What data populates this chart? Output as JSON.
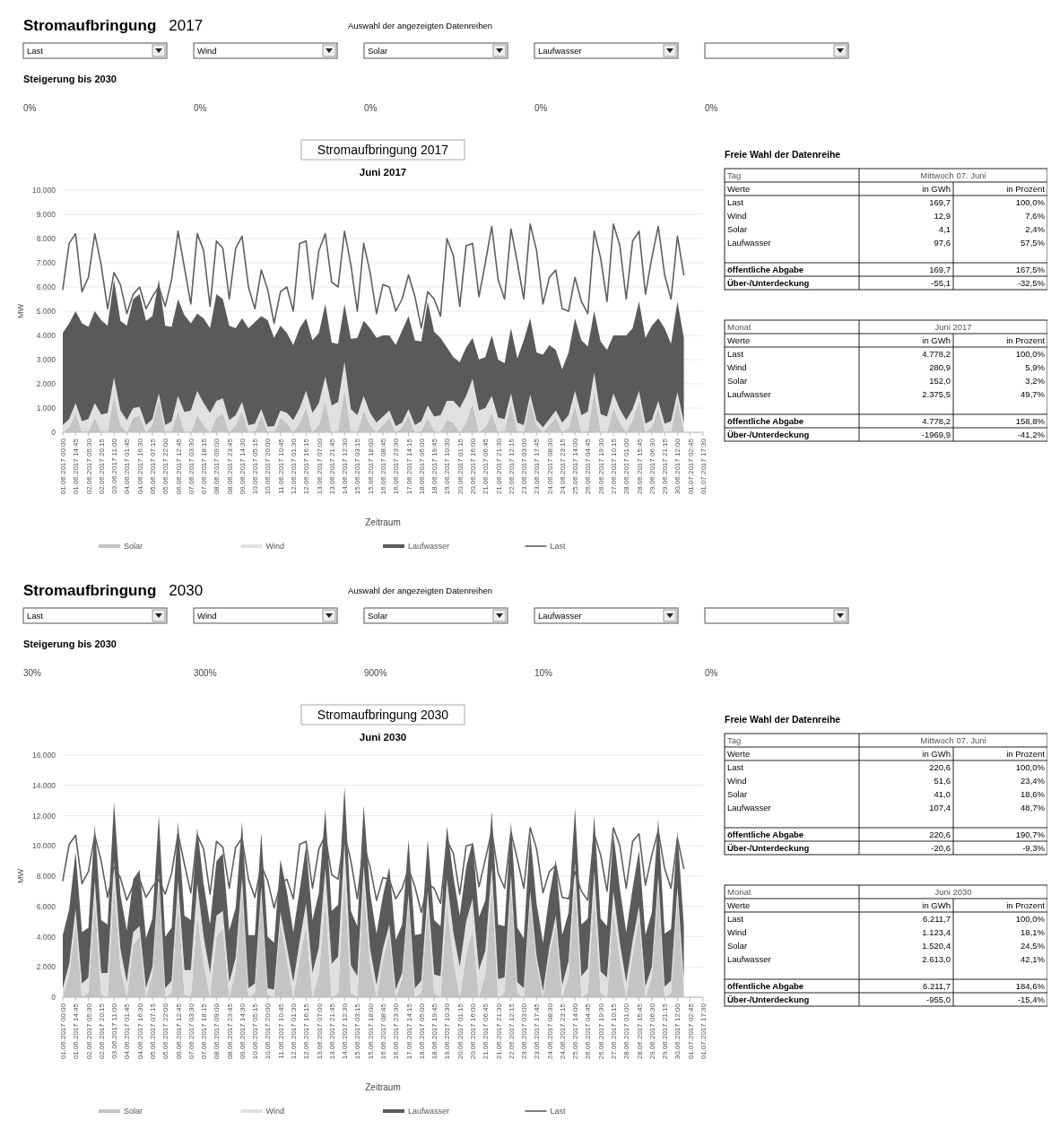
{
  "chart_data": [
    {
      "type": "other",
      "title": "Stromaufbringung",
      "subtitle": "2017",
      "categories": [
        "Last",
        "Wind",
        "Solar",
        "Laufwasser",
        null
      ],
      "annotations": [
        "Auswahl der angezeigten Datenreihen",
        "Steigerung bis 2030",
        "0%",
        "0%",
        "0%",
        "0%",
        "0%"
      ]
    },
    {
      "type": "area",
      "title": "Stromaufbringung 2017",
      "subtitle": "Juni 2017",
      "xlabel": "Zeitraum",
      "ylabel": "MW",
      "grid": "y",
      "legend": "bottom",
      "stacked": true,
      "ylim": [
        0,
        10000
      ],
      "yticks": [
        0,
        {
          "value": 1000,
          "label": "1.000"
        },
        {
          "value": 2000,
          "label": "2.000"
        },
        {
          "value": 3000,
          "label": "3.000"
        },
        {
          "value": 4000,
          "label": "4.000"
        },
        {
          "value": 5000,
          "label": "5.000"
        },
        {
          "value": 6000,
          "label": "6.000"
        },
        {
          "value": 7000,
          "label": "7.000"
        },
        {
          "value": 8000,
          "label": "8.000"
        },
        {
          "value": 9000,
          "label": "9.000"
        },
        {
          "value": 10000,
          "label": "10.000"
        }
      ],
      "categories": [
        "01.06.2017 00:00",
        null,
        "01.06.2017 14:45",
        null,
        "02.06.2017 05:30",
        null,
        "02.06.2017 20:15",
        null,
        "03.06.2017 11:00",
        null,
        "04.06.2017 01:45",
        null,
        "04.06.2017 16:30",
        null,
        "05.06.2017 07:15",
        null,
        "05.06.2017 22:00",
        null,
        "06.06.2017 12:45",
        null,
        "07.06.2017 03:30",
        null,
        "07.06.2017 18:15",
        null,
        "08.06.2017 09:00",
        null,
        "08.06.2017 23:45",
        null,
        "09.06.2017 14:30",
        null,
        "10.06.2017 05:15",
        null,
        "10.06.2017 20:00",
        null,
        "11.06.2017 10:45",
        null,
        "12.06.2017 01:30",
        null,
        "12.06.2017 16:15",
        null,
        "13.06.2017 07:00",
        null,
        "13.06.2017 21:45",
        null,
        "14.06.2017 12:30",
        null,
        "15.06.2017 03:15",
        null,
        "15.06.2017 18:00",
        null,
        "16.06.2017 08:45",
        null,
        "16.06.2017 23:30",
        null,
        "17.06.2017 14:15",
        null,
        "18.06.2017 05:00",
        null,
        "18.06.2017 19:45",
        null,
        "19.06.2017 10:30",
        null,
        "20.06.2017 01:15",
        null,
        "20.06.2017 16:00",
        null,
        "21.06.2017 06:45",
        null,
        "21.06.2017 21:30",
        null,
        "22.06.2017 12:15",
        null,
        "23.06.2017 03:00",
        null,
        "23.06.2017 17:45",
        null,
        "24.06.2017 08:30",
        null,
        "24.06.2017 23:15",
        null,
        "25.06.2017 14:00",
        null,
        "26.06.2017 04:45",
        null,
        "26.06.2017 19:30",
        null,
        "27.06.2017 10:15",
        null,
        "28.06.2017 01:00",
        null,
        "28.06.2017 15:45",
        null,
        "29.06.2017 06:30",
        null,
        "29.06.2017 21:15",
        null,
        "30.06.2017 12:00",
        null,
        "01.07.2017 02:45",
        null,
        "01.07.2017 17:30"
      ],
      "series": [
        {
          "name": "Solar",
          "color": "#c4c4c4",
          "values": [
            0,
            200,
            800,
            0,
            50,
            600,
            30,
            0,
            1500,
            300,
            0,
            600,
            700,
            0,
            300,
            1400,
            0,
            50,
            900,
            30,
            0,
            700,
            300,
            0,
            600,
            800,
            0,
            300,
            900,
            0,
            50,
            700,
            30,
            0,
            600,
            400,
            0,
            400,
            1000,
            0,
            300,
            1300,
            0,
            50,
            1800,
            50,
            0,
            900,
            300,
            0,
            300,
            600,
            0,
            200,
            700,
            0,
            50,
            600,
            50,
            0,
            500,
            400,
            0,
            400,
            1200,
            0,
            200,
            800,
            0,
            50,
            1200,
            50,
            0,
            1300,
            300,
            0,
            300,
            600,
            0,
            200,
            1100,
            0,
            50,
            1700,
            50,
            0,
            1000,
            400,
            0,
            500,
            1300,
            0,
            200,
            1000,
            0,
            50,
            1300,
            100,
            null,
            null,
            null
          ]
        },
        {
          "name": "Wind",
          "color": "#e0e0e0",
          "values": [
            300,
            350,
            400,
            450,
            500,
            600,
            700,
            800,
            750,
            600,
            500,
            400,
            350,
            300,
            250,
            200,
            300,
            400,
            600,
            800,
            900,
            1000,
            900,
            800,
            700,
            600,
            500,
            400,
            350,
            300,
            300,
            250,
            200,
            250,
            300,
            400,
            500,
            600,
            700,
            800,
            900,
            1000,
            1100,
            1200,
            1100,
            900,
            700,
            600,
            500,
            400,
            350,
            300,
            250,
            200,
            250,
            300,
            400,
            500,
            600,
            700,
            800,
            900,
            1000,
            1100,
            1000,
            900,
            800,
            700,
            600,
            500,
            400,
            350,
            300,
            250,
            200,
            200,
            250,
            300,
            400,
            500,
            600,
            700,
            800,
            750,
            700,
            650,
            600,
            550,
            500,
            450,
            400,
            350,
            300,
            300,
            350,
            400,
            350,
            300,
            null,
            null,
            null
          ]
        },
        {
          "name": "Laufwasser",
          "color": "#5a5a5a",
          "values": [
            3800,
            3950,
            3800,
            4050,
            3800,
            3800,
            3900,
            3600,
            4050,
            3700,
            3900,
            4500,
            4650,
            4300,
            4250,
            4700,
            4100,
            3900,
            4000,
            4000,
            3600,
            3200,
            3500,
            3500,
            4400,
            4100,
            3900,
            3600,
            3450,
            4000,
            4200,
            3850,
            4400,
            3650,
            3500,
            3300,
            3100,
            3300,
            3000,
            3000,
            2900,
            3000,
            2600,
            2400,
            2400,
            2900,
            3200,
            3100,
            3500,
            3500,
            3350,
            3100,
            3350,
            3800,
            3850,
            3500,
            3300,
            4300,
            3500,
            3200,
            2200,
            1800,
            1900,
            2000,
            1700,
            2100,
            2100,
            2500,
            2400,
            2300,
            2700,
            2650,
            3500,
            3150,
            2800,
            3000,
            3050,
            2500,
            2200,
            2600,
            3000,
            3100,
            2700,
            2550,
            3000,
            2750,
            2400,
            3050,
            3500,
            3350,
            3700,
            3550,
            3900,
            3400,
            3950,
            3200,
            3750,
            3500,
            null,
            null,
            null
          ]
        },
        {
          "name": "Last",
          "type": "line",
          "color": "#5f5f5f",
          "values": [
            5900,
            7800,
            8200,
            5800,
            6400,
            8200,
            6900,
            5100,
            6600,
            6100,
            4900,
            5700,
            6000,
            5100,
            5600,
            6000,
            5200,
            6300,
            8300,
            6800,
            5300,
            8200,
            7500,
            5200,
            7900,
            7600,
            5500,
            7600,
            8100,
            6000,
            5100,
            6700,
            5900,
            4500,
            5800,
            6000,
            5000,
            7800,
            7900,
            5500,
            7500,
            8200,
            6200,
            6000,
            8300,
            6900,
            5000,
            7800,
            6600,
            4900,
            6100,
            6000,
            5000,
            5500,
            6500,
            5600,
            4300,
            5800,
            5500,
            4800,
            8000,
            7300,
            5200,
            7700,
            7800,
            5600,
            7000,
            8500,
            6300,
            5500,
            8400,
            7000,
            5500,
            8600,
            7500,
            5300,
            6400,
            6700,
            5100,
            5000,
            6400,
            5400,
            4900,
            8300,
            7200,
            5400,
            8600,
            7700,
            5500,
            7900,
            8300,
            5700,
            7200,
            8500,
            6500,
            5500,
            8100,
            6500,
            null,
            null,
            null
          ]
        }
      ]
    },
    {
      "type": "other",
      "title": "Freie Wahl der Datenreihe",
      "xlabel": "Tag",
      "subtitle": "Mittwoch 07. Juni",
      "ylabel": "Werte",
      "categories": [
        "Last",
        "Wind",
        "Solar",
        "Laufwasser",
        null,
        "öffentliche Abgabe",
        "Über-/Unterdeckung"
      ],
      "series": [
        {
          "name": "in GWh",
          "values": [
            169.7,
            12.9,
            4.1,
            97.6,
            null,
            169.7,
            -55.1
          ],
          "value_labels": [
            "169,7",
            "12,9",
            "4,1",
            "97,6",
            null,
            "169,7",
            "-55,1"
          ]
        },
        {
          "name": "in Prozent",
          "values": [
            100.0,
            7.6,
            2.4,
            57.5,
            null,
            167.5,
            -32.5
          ],
          "value_labels": [
            "100,0%",
            "7,6%",
            "2,4%",
            "57,5%",
            null,
            "167,5%",
            "-32,5%"
          ]
        }
      ]
    },
    {
      "type": "other",
      "xlabel": "Monat",
      "subtitle": "Juni 2017",
      "ylabel": "Werte",
      "categories": [
        "Last",
        "Wind",
        "Solar",
        "Laufwasser",
        null,
        "öffentliche Abgabe",
        "Über-/Unterdeckung"
      ],
      "series": [
        {
          "name": "in GWh",
          "values": [
            4778.2,
            280.9,
            152.0,
            2375.5,
            null,
            4778.2,
            -1969.9
          ],
          "value_labels": [
            "4.778,2",
            "280,9",
            "152,0",
            "2.375,5",
            null,
            "4.778,2",
            "-1969,9"
          ]
        },
        {
          "name": "in Prozent",
          "values": [
            100.0,
            5.9,
            3.2,
            49.7,
            null,
            158.8,
            -41.2
          ],
          "value_labels": [
            "100,0%",
            "5,9%",
            "3,2%",
            "49,7%",
            null,
            "158,8%",
            "-41,2%"
          ]
        }
      ]
    },
    {
      "type": "other",
      "title": "Stromaufbringung",
      "subtitle": "2030",
      "categories": [
        "Last",
        "Wind",
        "Solar",
        "Laufwasser",
        null
      ],
      "annotations": [
        "Auswahl der angezeigten Datenreihen",
        "Steigerung bis 2030",
        "30%",
        "300%",
        "900%",
        "10%",
        "0%"
      ]
    },
    {
      "type": "area",
      "title": "Stromaufbringung 2030",
      "subtitle": "Juni 2030",
      "xlabel": "Zeitraum",
      "ylabel": "MW",
      "grid": "y",
      "legend": "bottom",
      "stacked": true,
      "ylim": [
        0,
        16000
      ],
      "yticks": [
        0,
        {
          "value": 2000,
          "label": "2.000"
        },
        {
          "value": 4000,
          "label": "4.000"
        },
        {
          "value": 6000,
          "label": "6.000"
        },
        {
          "value": 8000,
          "label": "8.000"
        },
        {
          "value": 10000,
          "label": "10.000"
        },
        {
          "value": 12000,
          "label": "12.000"
        },
        {
          "value": 14000,
          "label": "14.000"
        },
        {
          "value": 16000,
          "label": "16.000"
        }
      ],
      "categories": [
        "01.06.2017 00:00",
        null,
        "01.06.2017 14:45",
        null,
        "02.06.2017 05:30",
        null,
        "02.06.2017 20:15",
        null,
        "03.06.2017 11:00",
        null,
        "04.06.2017 01:45",
        null,
        "04.06.2017 16:30",
        null,
        "05.06.2017 07:15",
        null,
        "05.06.2017 22:00",
        null,
        "06.06.2017 12:45",
        null,
        "07.06.2017 03:30",
        null,
        "07.06.2017 18:15",
        null,
        "08.06.2017 09:00",
        null,
        "08.06.2017 23:45",
        null,
        "09.06.2017 14:30",
        null,
        "10.06.2017 05:15",
        null,
        "10.06.2017 20:00",
        null,
        "11.06.2017 10:45",
        null,
        "12.06.2017 01:30",
        null,
        "12.06.2017 16:15",
        null,
        "13.06.2017 07:00",
        null,
        "13.06.2017 21:45",
        null,
        "14.06.2017 12:30",
        null,
        "15.06.2017 03:15",
        null,
        "15.06.2017 18:00",
        null,
        "16.06.2017 08:45",
        null,
        "16.06.2017 23:30",
        null,
        "17.06.2017 14:15",
        null,
        "18.06.2017 05:00",
        null,
        "18.06.2017 19:45",
        null,
        "19.06.2017 10:30",
        null,
        "20.06.2017 01:15",
        null,
        "20.06.2017 16:00",
        null,
        "21.06.2017 06:45",
        null,
        "21.06.2017 21:30",
        null,
        "22.06.2017 12:15",
        null,
        "23.06.2017 03:00",
        null,
        "23.06.2017 17:45",
        null,
        "24.06.2017 08:30",
        null,
        "24.06.2017 23:15",
        null,
        "25.06.2017 14:00",
        null,
        "26.06.2017 04:45",
        null,
        "26.06.2017 19:30",
        null,
        "27.06.2017 10:15",
        null,
        "28.06.2017 01:00",
        null,
        "28.06.2017 15:45",
        null,
        "29.06.2017 06:30",
        null,
        "29.06.2017 21:15",
        null,
        "30.06.2017 12:00",
        null,
        "01.07.2017 02:45",
        null,
        "01.07.2017 17:30"
      ],
      "series": [
        {
          "name": "Solar",
          "color": "#c4c4c4",
          "values": [
            0,
            1500,
            5000,
            0,
            300,
            6500,
            200,
            0,
            7500,
            2000,
            0,
            3500,
            4000,
            0,
            1500,
            7800,
            0,
            300,
            6500,
            200,
            0,
            5500,
            2200,
            0,
            4000,
            4500,
            0,
            1800,
            7200,
            0,
            300,
            6800,
            200,
            0,
            5000,
            2500,
            0,
            2500,
            4800,
            0,
            1500,
            6500,
            0,
            300,
            8000,
            300,
            0,
            7500,
            2200,
            0,
            2500,
            4200,
            0,
            1200,
            6300,
            0,
            300,
            6000,
            300,
            0,
            6200,
            2500,
            0,
            2800,
            4500,
            0,
            1500,
            7200,
            0,
            300,
            7300,
            300,
            0,
            6500,
            2300,
            0,
            2800,
            4800,
            0,
            1400,
            7700,
            0,
            300,
            6800,
            300,
            0,
            5800,
            2500,
            0,
            2800,
            5200,
            0,
            1400,
            7400,
            0,
            300,
            6600,
            600,
            null,
            null,
            null
          ]
        },
        {
          "name": "Wind",
          "color": "#e0e0e0",
          "values": [
            600,
            700,
            800,
            900,
            1000,
            1200,
            1400,
            1600,
            1500,
            1200,
            1000,
            800,
            700,
            600,
            500,
            400,
            600,
            800,
            1200,
            1600,
            1800,
            2000,
            1800,
            1600,
            1400,
            1200,
            1000,
            800,
            700,
            600,
            600,
            500,
            400,
            500,
            600,
            800,
            1000,
            1200,
            1400,
            1600,
            1800,
            2000,
            2200,
            2400,
            2200,
            1800,
            1400,
            1200,
            1000,
            800,
            700,
            600,
            500,
            400,
            500,
            600,
            800,
            1000,
            1200,
            1400,
            1600,
            1800,
            2000,
            2200,
            2000,
            1800,
            1600,
            1400,
            1200,
            1000,
            800,
            700,
            600,
            500,
            400,
            400,
            500,
            600,
            800,
            1000,
            1200,
            1400,
            1600,
            1500,
            1400,
            1300,
            1200,
            1100,
            1000,
            900,
            800,
            700,
            600,
            600,
            700,
            800,
            700,
            600,
            null,
            null,
            null
          ]
        },
        {
          "name": "Laufwasser",
          "color": "#5a5a5a",
          "values": [
            3500,
            3600,
            3800,
            3400,
            3300,
            3700,
            3500,
            3200,
            3900,
            3600,
            3400,
            3500,
            3700,
            3300,
            3200,
            3800,
            3400,
            3500,
            3900,
            3600,
            3300,
            3700,
            3500,
            3200,
            3600,
            3800,
            3400,
            3300,
            3700,
            3500,
            3200,
            3600,
            3400,
            3100,
            3500,
            3700,
            3300,
            3400,
            3800,
            3500,
            3600,
            3900,
            3500,
            3400,
            3700,
            3600,
            3300,
            4000,
            3700,
            3400,
            3500,
            3800,
            3300,
            3200,
            3600,
            3500,
            3100,
            3400,
            3600,
            3300,
            3500,
            3700,
            3400,
            3600,
            3800,
            3500,
            3300,
            3700,
            3600,
            3400,
            3500,
            3600,
            3300,
            3800,
            3500,
            3200,
            3400,
            3700,
            3300,
            3200,
            3600,
            3400,
            3300,
            3700,
            3500,
            3400,
            3800,
            3600,
            3300,
            3500,
            3700,
            3400,
            3600,
            3800,
            3500,
            3400,
            3700,
            3500,
            null,
            null,
            null
          ]
        },
        {
          "name": "Last",
          "type": "line",
          "color": "#5f5f5f",
          "values": [
            7700,
            10100,
            10700,
            7500,
            8300,
            10700,
            9000,
            6600,
            8600,
            7900,
            6400,
            7400,
            7800,
            6600,
            7300,
            7800,
            6800,
            8200,
            10800,
            8800,
            6900,
            10700,
            9800,
            6800,
            10300,
            9900,
            7200,
            9900,
            10500,
            7800,
            6600,
            8700,
            7700,
            5900,
            7500,
            7800,
            6500,
            10100,
            10300,
            7200,
            9800,
            10700,
            8100,
            7800,
            10800,
            9000,
            6500,
            10100,
            8600,
            6400,
            7900,
            7800,
            6500,
            7200,
            8500,
            7300,
            5600,
            7500,
            7200,
            6200,
            10400,
            9500,
            6800,
            10000,
            10100,
            7300,
            9100,
            11000,
            8200,
            7200,
            10900,
            9100,
            7200,
            11200,
            9800,
            6900,
            8300,
            8700,
            6600,
            6500,
            8300,
            7000,
            6400,
            10800,
            9400,
            7000,
            11200,
            10000,
            7200,
            10300,
            10800,
            7400,
            9400,
            11000,
            8500,
            7200,
            10500,
            8500,
            null,
            null,
            null
          ]
        }
      ]
    },
    {
      "type": "other",
      "title": "Freie Wahl der Datenreihe",
      "xlabel": "Tag",
      "subtitle": "Mittwoch 07. Juni",
      "ylabel": "Werte",
      "categories": [
        "Last",
        "Wind",
        "Solar",
        "Laufwasser",
        null,
        "öffentliche Abgabe",
        "Über-/Unterdeckung"
      ],
      "series": [
        {
          "name": "in GWh",
          "values": [
            220.6,
            51.6,
            41.0,
            107.4,
            null,
            220.6,
            -20.6
          ],
          "value_labels": [
            "220,6",
            "51,6",
            "41,0",
            "107,4",
            null,
            "220,6",
            "-20,6"
          ]
        },
        {
          "name": "in Prozent",
          "values": [
            100.0,
            23.4,
            18.6,
            48.7,
            null,
            190.7,
            -9.3
          ],
          "value_labels": [
            "100,0%",
            "23,4%",
            "18,6%",
            "48,7%",
            null,
            "190,7%",
            "-9,3%"
          ]
        }
      ]
    },
    {
      "type": "other",
      "xlabel": "Monat",
      "subtitle": "Juni 2030",
      "ylabel": "Werte",
      "categories": [
        "Last",
        "Wind",
        "Solar",
        "Laufwasser",
        null,
        "öffentliche Abgabe",
        "Über-/Unterdeckung"
      ],
      "series": [
        {
          "name": "in GWh",
          "values": [
            6211.7,
            1123.4,
            1520.4,
            2613.0,
            null,
            6211.7,
            -955.0
          ],
          "value_labels": [
            "6.211,7",
            "1.123,4",
            "1.520,4",
            "2.613,0",
            null,
            "6.211,7",
            "-955,0"
          ]
        },
        {
          "name": "in Prozent",
          "values": [
            100.0,
            18.1,
            24.5,
            42.1,
            null,
            184.6,
            -15.4
          ],
          "value_labels": [
            "100,0%",
            "18,1%",
            "24,5%",
            "42,1%",
            null,
            "184,6%",
            "-15,4%"
          ]
        }
      ]
    }
  ]
}
